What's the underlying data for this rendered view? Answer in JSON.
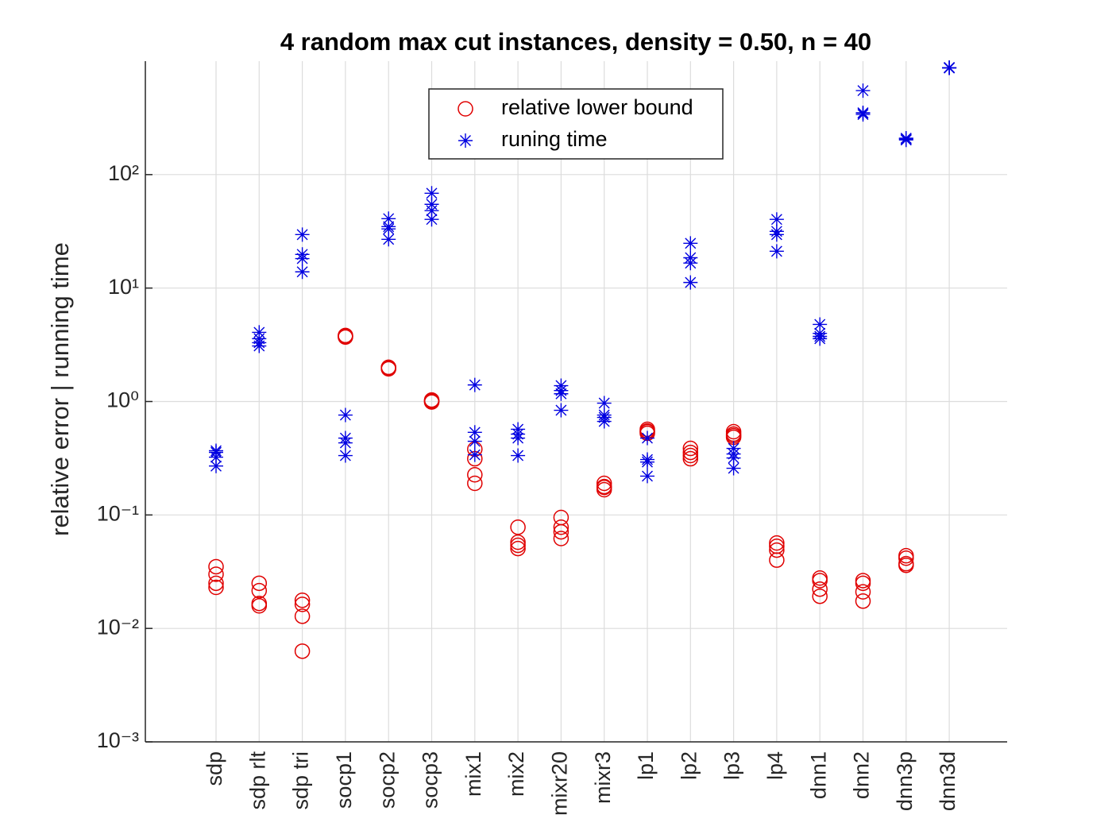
{
  "chart_data": {
    "type": "scatter",
    "title": "4 random max cut instances, density = 0.50, n = 40",
    "y_label": "relative error    |    running time",
    "yscale": "log",
    "grid": true,
    "legend": "north",
    "categories": [
      "sdp",
      "sdp rlt",
      "sdp tri",
      "socp1",
      "socp2",
      "socp3",
      "mix1",
      "mix2",
      "mixr20",
      "mixr3",
      "lp1",
      "lp2",
      "lp3",
      "lp4",
      "dnn1",
      "dnn2",
      "dnn3p",
      "dnn3d"
    ],
    "ylim": [
      0.001,
      1000
    ],
    "yticks": [
      {
        "value": 0.001,
        "label": "10⁻³"
      },
      {
        "value": 0.01,
        "label": "10⁻²"
      },
      {
        "value": 0.1,
        "label": "10⁻¹"
      },
      {
        "value": 1,
        "label": "10⁰"
      },
      {
        "value": 10,
        "label": "10¹"
      },
      {
        "value": 100,
        "label": "10²"
      }
    ],
    "series": [
      {
        "name": "relative lower bound",
        "color": "#e00000",
        "marker": "circle",
        "values": [
          [
            0.035,
            0.03,
            0.025,
            0.023
          ],
          [
            0.025,
            0.0215,
            0.0166,
            0.0158
          ],
          [
            0.0177,
            0.0163,
            0.0128,
            0.0063
          ],
          [
            3.82,
            3.7,
            3.75,
            3.8
          ],
          [
            2.0,
            1.94,
            2.0,
            1.97
          ],
          [
            1.03,
            0.99,
            1.0,
            1.02
          ],
          [
            0.38,
            0.313,
            0.226,
            0.19
          ],
          [
            0.078,
            0.0575,
            0.054,
            0.0506
          ],
          [
            0.095,
            0.078,
            0.071,
            0.062
          ],
          [
            0.19,
            0.178,
            0.167,
            0.175
          ],
          [
            0.569,
            0.542,
            0.525,
            0.55
          ],
          [
            0.386,
            0.356,
            0.334,
            0.313
          ],
          [
            0.542,
            0.516,
            0.5,
            0.484
          ],
          [
            0.0566,
            0.053,
            0.049,
            0.04
          ],
          [
            0.0278,
            0.0264,
            0.0222,
            0.0192
          ],
          [
            0.0264,
            0.025,
            0.021,
            0.0174
          ],
          [
            0.0437,
            0.0416,
            0.0372,
            0.036
          ],
          [
            null,
            null,
            null,
            null
          ]
        ]
      },
      {
        "name": "runing time",
        "color": "#0000e0",
        "marker": "star",
        "values": [
          [
            0.368,
            0.356,
            0.323,
            0.27
          ],
          [
            4.07,
            3.58,
            3.3,
            3.09
          ],
          [
            29.6,
            19.8,
            18.2,
            13.9
          ],
          [
            0.76,
            0.476,
            0.432,
            0.334
          ],
          [
            40.9,
            34.8,
            33.2,
            26.9
          ],
          [
            68.5,
            54.7,
            48.1,
            40.3
          ],
          [
            1.4,
            0.535,
            0.446,
            0.339
          ],
          [
            0.569,
            0.516,
            0.476,
            0.334
          ],
          [
            1.38,
            1.25,
            1.17,
            0.837
          ],
          [
            0.968,
            0.76,
            0.724,
            0.668
          ],
          [
            0.476,
            0.308,
            0.293,
            0.22
          ],
          [
            24.8,
            18.5,
            16.6,
            11.2
          ],
          [
            0.386,
            0.345,
            0.318,
            0.258
          ],
          [
            40.3,
            31.6,
            29.6,
            21.1
          ],
          [
            4.78,
            3.99,
            3.75,
            3.58
          ],
          [
            550,
            350,
            339,
            350
          ],
          [
            209,
            205,
            202,
            209
          ],
          [
            877,
            870,
            877,
            877
          ]
        ]
      }
    ]
  }
}
